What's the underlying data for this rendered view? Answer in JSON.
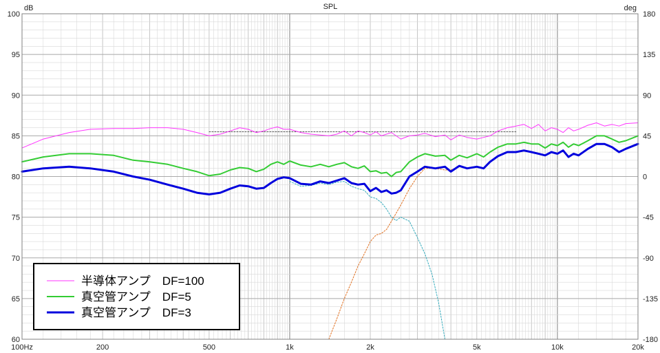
{
  "chart_data": {
    "type": "line",
    "title": "SPL",
    "y_unit_left": "dB",
    "y_unit_right": "deg",
    "x_scale": "log",
    "xlim": [
      100,
      20000
    ],
    "ylim": [
      60,
      100
    ],
    "ylim_right": [
      -180,
      180
    ],
    "grid": true,
    "legend_position": "bottom-left",
    "x_ticks": [
      {
        "v": 100,
        "label": "100Hz"
      },
      {
        "v": 200,
        "label": "200"
      },
      {
        "v": 500,
        "label": "500"
      },
      {
        "v": 1000,
        "label": "1k"
      },
      {
        "v": 2000,
        "label": "2k"
      },
      {
        "v": 5000,
        "label": "5k"
      },
      {
        "v": 10000,
        "label": "10k"
      },
      {
        "v": 20000,
        "label": "20k"
      }
    ],
    "y_ticks": [
      "60",
      "65",
      "70",
      "75",
      "80",
      "85",
      "90",
      "95",
      "100"
    ],
    "y_ticks_right": [
      "-180",
      "-135",
      "-90",
      "-45",
      "0",
      "45",
      "90",
      "135",
      "180"
    ],
    "colors": {
      "semiconductor": "#ff33ff",
      "tube_df5": "#33cc33",
      "tube_df3": "#0000dd",
      "tweeter_dashed": "#33aabb",
      "woofer_dashed": "#e07020",
      "reference_dashed": "#555555",
      "grid_major": "#808080",
      "grid_minor": "#d8d8d8"
    },
    "series": [
      {
        "name": "半導体アンプ　DF=100",
        "color": "#ff33ff",
        "width": 1,
        "x": [
          100,
          120,
          150,
          180,
          220,
          260,
          300,
          350,
          400,
          450,
          500,
          550,
          600,
          650,
          700,
          750,
          800,
          850,
          900,
          950,
          1000,
          1100,
          1200,
          1300,
          1400,
          1500,
          1600,
          1700,
          1800,
          1900,
          2000,
          2100,
          2200,
          2400,
          2600,
          2800,
          3000,
          3200,
          3500,
          3800,
          4000,
          4300,
          4600,
          5000,
          5300,
          5600,
          6000,
          6500,
          7000,
          7500,
          8000,
          8500,
          9000,
          9500,
          10000,
          10500,
          11000,
          11500,
          12000,
          13000,
          14000,
          15000,
          16000,
          17000,
          18000,
          20000
        ],
        "y": [
          83.5,
          84.6,
          85.4,
          85.8,
          85.9,
          85.9,
          86.0,
          86.0,
          85.8,
          85.4,
          85.0,
          85.2,
          85.6,
          86.0,
          85.8,
          85.4,
          85.6,
          85.9,
          86.1,
          85.8,
          85.8,
          85.4,
          85.2,
          85.1,
          85.0,
          85.2,
          85.6,
          85.0,
          85.6,
          85.4,
          85.1,
          85.5,
          85.0,
          85.4,
          84.6,
          85.0,
          85.1,
          85.3,
          84.9,
          85.1,
          84.5,
          85.1,
          84.8,
          84.6,
          84.8,
          85.0,
          85.6,
          86.0,
          86.2,
          86.4,
          85.9,
          86.4,
          85.6,
          86.0,
          85.8,
          85.4,
          86.0,
          85.6,
          85.8,
          86.3,
          86.6,
          86.2,
          86.4,
          86.2,
          86.5,
          86.6
        ]
      },
      {
        "name": "真空管アンプ　DF=5",
        "color": "#33cc33",
        "width": 2,
        "x": [
          100,
          120,
          150,
          180,
          220,
          260,
          300,
          350,
          400,
          450,
          500,
          550,
          600,
          650,
          700,
          750,
          800,
          850,
          900,
          950,
          1000,
          1100,
          1200,
          1300,
          1400,
          1500,
          1600,
          1700,
          1800,
          1900,
          2000,
          2100,
          2200,
          2300,
          2400,
          2500,
          2600,
          2800,
          3000,
          3200,
          3500,
          3800,
          4000,
          4300,
          4600,
          5000,
          5300,
          5600,
          6000,
          6500,
          7000,
          7500,
          8000,
          8500,
          9000,
          9500,
          10000,
          10500,
          11000,
          11500,
          12000,
          13000,
          14000,
          15000,
          16000,
          17000,
          18000,
          20000
        ],
        "y": [
          81.8,
          82.4,
          82.8,
          82.8,
          82.6,
          82.0,
          81.8,
          81.5,
          81.0,
          80.6,
          80.1,
          80.3,
          80.8,
          81.1,
          81.0,
          80.6,
          80.9,
          81.5,
          81.8,
          81.5,
          81.9,
          81.4,
          81.2,
          81.5,
          81.2,
          81.5,
          81.7,
          81.2,
          81.0,
          81.3,
          80.6,
          80.7,
          80.4,
          80.5,
          80.0,
          80.5,
          80.6,
          81.8,
          82.4,
          82.8,
          82.5,
          82.6,
          82.0,
          82.6,
          82.3,
          82.8,
          82.4,
          83.0,
          83.6,
          84.0,
          84.0,
          84.2,
          84.0,
          84.0,
          83.5,
          84.0,
          83.8,
          84.2,
          83.6,
          84.0,
          83.8,
          84.4,
          85.0,
          85.0,
          84.6,
          84.2,
          84.4,
          85.0
        ]
      },
      {
        "name": "真空管アンプ　DF=3",
        "color": "#0000dd",
        "width": 3,
        "x": [
          100,
          120,
          150,
          180,
          220,
          260,
          300,
          350,
          400,
          450,
          500,
          550,
          600,
          650,
          700,
          750,
          800,
          850,
          900,
          950,
          1000,
          1100,
          1200,
          1300,
          1400,
          1500,
          1600,
          1700,
          1800,
          1900,
          2000,
          2100,
          2200,
          2300,
          2400,
          2500,
          2600,
          2800,
          3000,
          3200,
          3500,
          3800,
          4000,
          4300,
          4600,
          5000,
          5300,
          5600,
          6000,
          6500,
          7000,
          7500,
          8000,
          8500,
          9000,
          9500,
          10000,
          10500,
          11000,
          11500,
          12000,
          13000,
          14000,
          15000,
          16000,
          17000,
          18000,
          20000
        ],
        "y": [
          80.6,
          81.0,
          81.2,
          81.0,
          80.6,
          80.0,
          79.6,
          79.0,
          78.5,
          78.0,
          77.8,
          78.0,
          78.5,
          78.9,
          78.8,
          78.5,
          78.6,
          79.2,
          79.7,
          79.9,
          79.8,
          79.1,
          79.0,
          79.4,
          79.2,
          79.5,
          79.8,
          79.2,
          79.0,
          79.1,
          78.2,
          78.6,
          78.1,
          78.3,
          77.9,
          78.0,
          78.3,
          80.0,
          80.6,
          81.2,
          81.0,
          81.2,
          80.6,
          81.3,
          81.0,
          81.2,
          81.0,
          81.8,
          82.5,
          83.0,
          83.0,
          83.2,
          83.0,
          82.8,
          82.6,
          83.0,
          82.8,
          83.2,
          82.4,
          82.8,
          82.6,
          83.4,
          84.0,
          84.0,
          83.6,
          83.0,
          83.4,
          84.0
        ]
      },
      {
        "color": "#33aabb",
        "width": 1,
        "dashed": true,
        "x": [
          1000,
          1100,
          1200,
          1300,
          1400,
          1500,
          1600,
          1700,
          1800,
          1900,
          2000,
          2100,
          2200,
          2300,
          2400,
          2500,
          2600,
          2800,
          3000,
          3200,
          3400,
          3600,
          3800
        ],
        "y": [
          79.4,
          78.8,
          78.9,
          79.2,
          79.0,
          79.3,
          79.4,
          78.8,
          78.5,
          78.3,
          77.5,
          77.3,
          76.8,
          76.0,
          75.0,
          74.6,
          75.0,
          74.5,
          72.5,
          70.5,
          68.0,
          64.5,
          60.0
        ]
      },
      {
        "color": "#e07020",
        "width": 1,
        "dashed": true,
        "x": [
          1400,
          1500,
          1600,
          1700,
          1800,
          1900,
          2000,
          2100,
          2200,
          2300,
          2400,
          2500,
          2600,
          2800,
          3000,
          3200,
          3500,
          3800,
          4000,
          4300,
          4600,
          5000
        ],
        "y": [
          60.0,
          62.5,
          65.0,
          67.0,
          69.0,
          70.5,
          72.0,
          72.8,
          73.0,
          73.5,
          74.5,
          75.5,
          76.5,
          78.5,
          80.0,
          81.0,
          81.0,
          80.8,
          80.8,
          81.2,
          81.0,
          81.2
        ]
      },
      {
        "color": "#555555",
        "width": 1,
        "dashed": true,
        "x": [
          500,
          7000
        ],
        "y": [
          85.5,
          85.5
        ]
      }
    ]
  }
}
